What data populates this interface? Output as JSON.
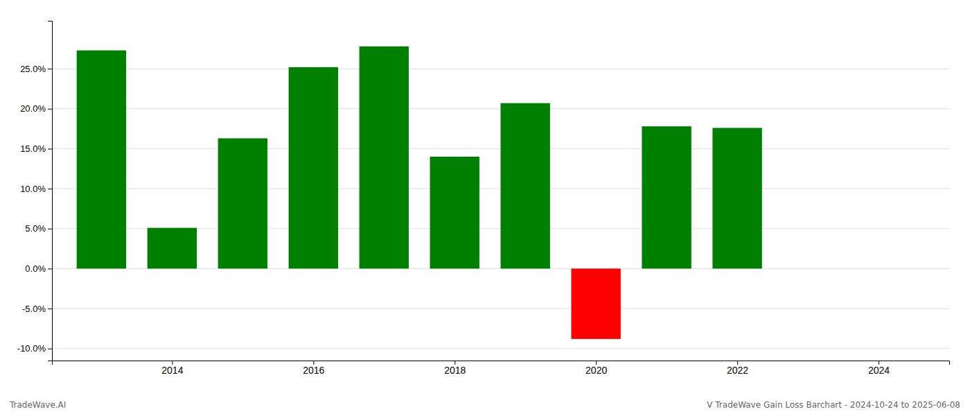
{
  "chart_data": {
    "type": "bar",
    "x": [
      2013,
      2014,
      2015,
      2016,
      2017,
      2018,
      2019,
      2020,
      2021,
      2022
    ],
    "values": [
      0.273,
      0.051,
      0.163,
      0.252,
      0.278,
      0.14,
      0.207,
      -0.088,
      0.178,
      0.176
    ],
    "colors": [
      "#008000",
      "#008000",
      "#008000",
      "#008000",
      "#008000",
      "#008000",
      "#008000",
      "#ff0000",
      "#008000",
      "#008000"
    ],
    "xlim": [
      2012.3,
      2025.0
    ],
    "xticks": [
      2014,
      2016,
      2018,
      2020,
      2022,
      2024
    ],
    "ylim": [
      -0.115,
      0.31
    ],
    "yticks": [
      {
        "value": -0.1,
        "label": "-10.0%"
      },
      {
        "value": -0.05,
        "label": "-5.0%"
      },
      {
        "value": 0.0,
        "label": "0.0%"
      },
      {
        "value": 0.05,
        "label": "5.0%"
      },
      {
        "value": 0.1,
        "label": "10.0%"
      },
      {
        "value": 0.15,
        "label": "15.0%"
      },
      {
        "value": 0.2,
        "label": "20.0%"
      },
      {
        "value": 0.25,
        "label": "25.0%"
      }
    ],
    "grid": true,
    "annotations": [
      "TradeWave.AI",
      "V TradeWave Gain Loss Barchart - 2024-10-24 to 2025-06-08"
    ]
  }
}
